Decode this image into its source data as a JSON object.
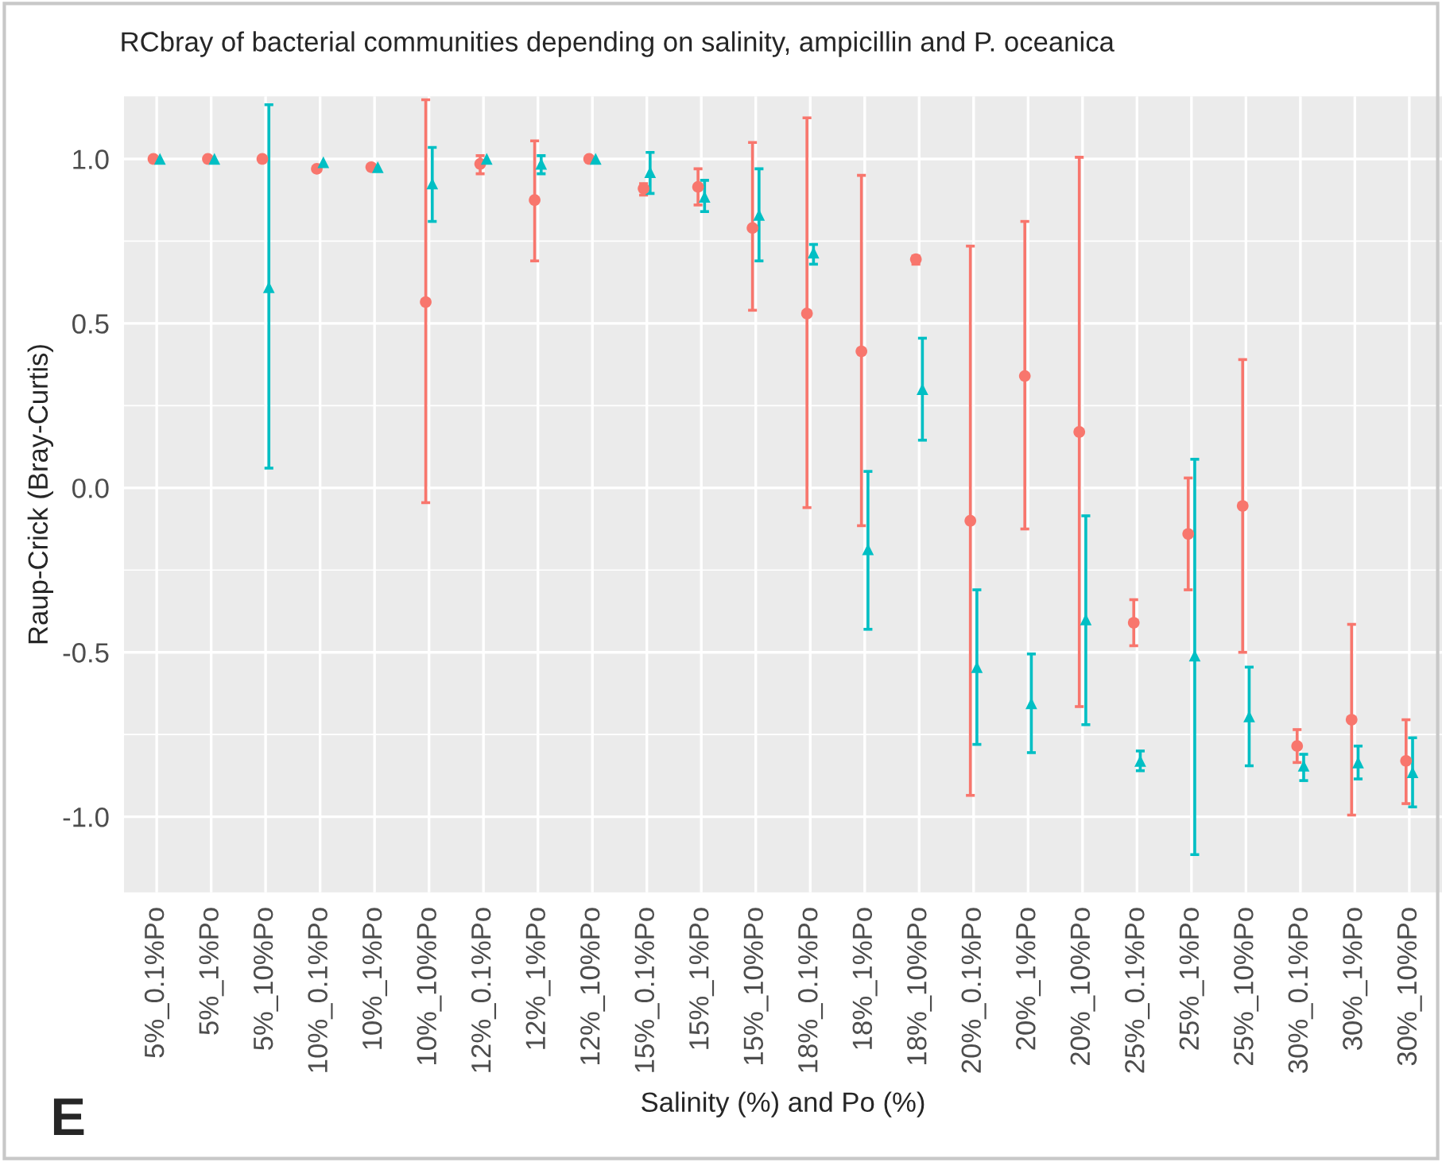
{
  "chart_data": {
    "type": "scatter",
    "title": "RCbray of bacterial communities depending on salinity, ampicillin and P. oceanica",
    "xlabel": "Salinity (%) and Po (%)",
    "ylabel": "Raup-Crick (Bray-Curtis)",
    "annotations": [
      "E"
    ],
    "categories": [
      "5%_0.1%Po",
      "5%_1%Po",
      "5%_10%Po",
      "10%_0.1%Po",
      "10%_1%Po",
      "10%_10%Po",
      "12%_0.1%Po",
      "12%_1%Po",
      "12%_10%Po",
      "15%_0.1%Po",
      "15%_1%Po",
      "15%_10%Po",
      "18%_0.1%Po",
      "18%_1%Po",
      "18%_10%Po",
      "20%_0.1%Po",
      "20%_1%Po",
      "20%_10%Po",
      "25%_0.1%Po",
      "25%_1%Po",
      "25%_10%Po",
      "30%_0.1%Po",
      "30%_1%Po",
      "30%_10%Po"
    ],
    "series": [
      {
        "color": "#f8766d",
        "marker": "circle",
        "values": [
          1.0,
          1.0,
          1.0,
          0.97,
          0.975,
          0.565,
          0.985,
          0.875,
          1.0,
          0.91,
          0.915,
          0.79,
          0.53,
          0.415,
          0.695,
          -0.1,
          0.34,
          0.17,
          -0.41,
          -0.14,
          -0.055,
          -0.785,
          -0.705,
          -0.83
        ],
        "errors": [
          null,
          null,
          null,
          null,
          null,
          [
            -0.045,
            1.18
          ],
          [
            0.955,
            1.01
          ],
          [
            0.69,
            1.055
          ],
          null,
          [
            0.89,
            0.925
          ],
          [
            0.86,
            0.97
          ],
          [
            0.54,
            1.05
          ],
          [
            -0.06,
            1.125
          ],
          [
            -0.115,
            0.95
          ],
          [
            0.68,
            0.705
          ],
          [
            -0.935,
            0.735
          ],
          [
            -0.125,
            0.81
          ],
          [
            -0.665,
            1.005
          ],
          [
            -0.48,
            -0.34
          ],
          [
            -0.31,
            0.03
          ],
          [
            -0.5,
            0.39
          ],
          [
            -0.835,
            -0.735
          ],
          [
            -0.995,
            -0.415
          ],
          [
            -0.96,
            -0.705
          ]
        ]
      },
      {
        "color": "#00bfc4",
        "marker": "triangle",
        "values": [
          1.0,
          1.0,
          0.61,
          0.99,
          0.975,
          0.925,
          1.0,
          0.985,
          1.0,
          0.96,
          0.885,
          0.83,
          0.715,
          -0.187,
          0.3,
          -0.545,
          -0.655,
          -0.4,
          -0.83,
          -0.51,
          -0.695,
          -0.845,
          -0.835,
          -0.865
        ],
        "errors": [
          null,
          null,
          [
            0.06,
            1.165
          ],
          null,
          null,
          [
            0.81,
            1.035
          ],
          null,
          [
            0.955,
            1.01
          ],
          null,
          [
            0.895,
            1.02
          ],
          [
            0.84,
            0.935
          ],
          [
            0.69,
            0.97
          ],
          [
            0.68,
            0.74
          ],
          [
            -0.43,
            0.05
          ],
          [
            0.145,
            0.455
          ],
          [
            -0.78,
            -0.31
          ],
          [
            -0.805,
            -0.505
          ],
          [
            -0.72,
            -0.085
          ],
          [
            -0.86,
            -0.8
          ],
          [
            -1.115,
            0.087
          ],
          [
            -0.845,
            -0.545
          ],
          [
            -0.89,
            -0.81
          ],
          [
            -0.885,
            -0.785
          ],
          [
            -0.97,
            -0.76
          ]
        ]
      }
    ],
    "ylim": [
      -1.23,
      1.19
    ],
    "yticks": [
      {
        "value": -1,
        "label": "-1.0"
      },
      {
        "value": -0.5,
        "label": "-0.5"
      },
      {
        "value": 0,
        "label": "0.0"
      },
      {
        "value": 0.5,
        "label": "0.5"
      },
      {
        "value": 1,
        "label": "1.0"
      }
    ],
    "grid": true,
    "legend": false
  }
}
